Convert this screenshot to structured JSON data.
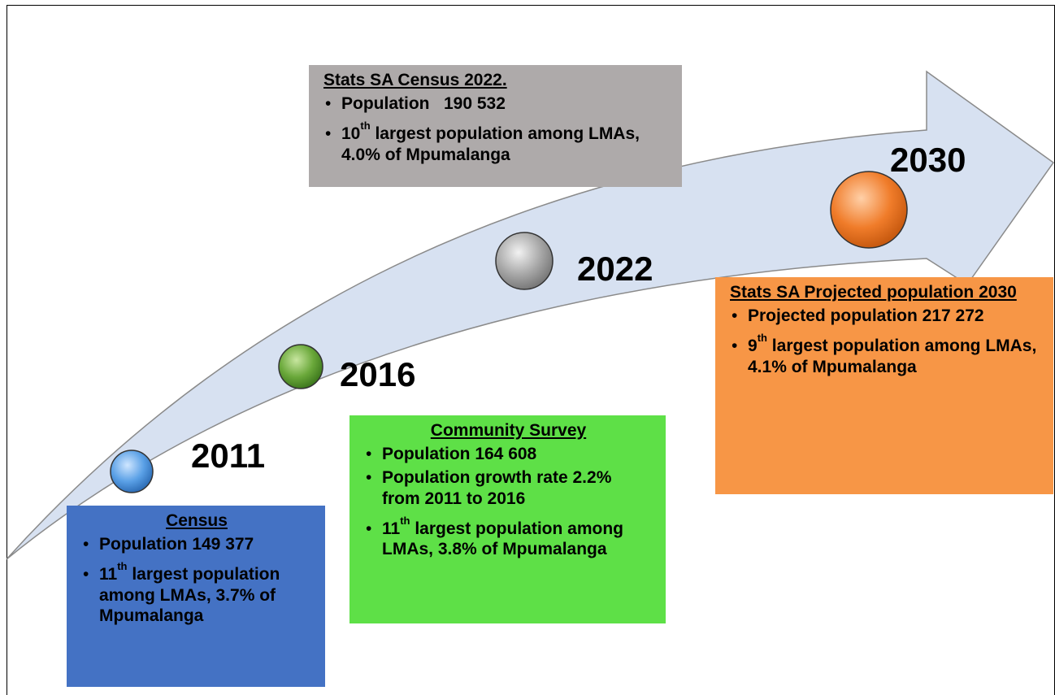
{
  "milestones": [
    {
      "year": "2011",
      "title": "Census",
      "bullets": [
        {
          "text": "Population 149 377"
        },
        {
          "num": "11",
          "sup": "th",
          "text": " largest population among LMAs, 3.7% of Mpumalanga"
        }
      ]
    },
    {
      "year": "2016",
      "title": "Community Survey",
      "bullets": [
        {
          "text": "Population 164 608"
        },
        {
          "text": "Population growth rate 2.2% from 2011 to 2016"
        },
        {
          "num": "11",
          "sup": "th",
          "text": " largest population among LMAs, 3.8% of Mpumalanga"
        }
      ]
    },
    {
      "year": "2022",
      "title": "Stats SA Census 2022.",
      "bullets": [
        {
          "text": "Population   190 532"
        },
        {
          "num": "10",
          "sup": "th",
          "text": " largest population among LMAs, 4.0% of Mpumalanga"
        }
      ]
    },
    {
      "year": "2030",
      "title": "Stats SA Projected population 2030",
      "bullets": [
        {
          "text": "Projected population 217 272"
        },
        {
          "num": "9",
          "sup": "th",
          "text": " largest population among LMAs, 4.1% of Mpumalanga"
        }
      ]
    }
  ]
}
